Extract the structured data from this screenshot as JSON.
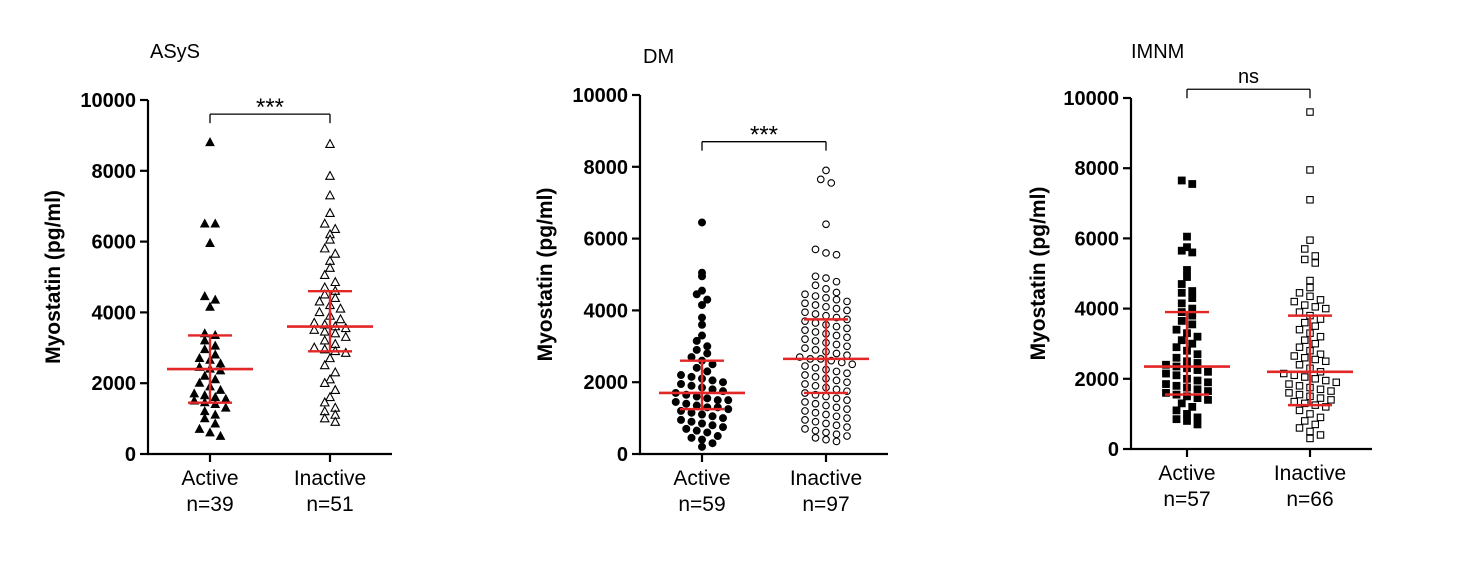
{
  "colors": {
    "point": "#000000",
    "summary": "#e32626",
    "axis": "#000000"
  },
  "chart_data": [
    {
      "type": "scatter",
      "title": "ASyS",
      "ylabel": "Myostatin (pg/ml)",
      "ylim": [
        0,
        10000
      ],
      "yticks": [
        "0",
        "2000",
        "4000",
        "6000",
        "8000",
        "10000"
      ],
      "categories": [
        {
          "name": "Active",
          "n_label": "n=39"
        },
        {
          "name": "Inactive",
          "n_label": "n=51"
        }
      ],
      "significance": {
        "label": "***",
        "y": 9600
      },
      "series": [
        {
          "name": "Active",
          "marker": "triangle-filled",
          "median": 2400,
          "q1": 1450,
          "q3": 3350,
          "values": [
            8800,
            6500,
            6500,
            5950,
            4450,
            4350,
            4150,
            3400,
            3350,
            3200,
            3050,
            2950,
            2800,
            2700,
            2650,
            2550,
            2450,
            2400,
            2350,
            2200,
            2100,
            2000,
            1900,
            1800,
            1700,
            1650,
            1600,
            1550,
            1500,
            1450,
            1400,
            1300,
            1200,
            1100,
            1000,
            850,
            700,
            600,
            500
          ]
        },
        {
          "name": "Inactive",
          "marker": "triangle-open",
          "median": 3600,
          "q1": 2900,
          "q3": 4600,
          "values": [
            8750,
            7850,
            7300,
            6800,
            6500,
            6350,
            6200,
            6050,
            5800,
            5650,
            5450,
            5250,
            5050,
            4850,
            4700,
            4600,
            4500,
            4400,
            4300,
            4200,
            4100,
            4000,
            3900,
            3800,
            3700,
            3650,
            3600,
            3550,
            3500,
            3450,
            3400,
            3300,
            3200,
            3100,
            3000,
            2950,
            2900,
            2850,
            2700,
            2500,
            2300,
            2100,
            2000,
            1800,
            1600,
            1450,
            1300,
            1200,
            1100,
            1000,
            900
          ]
        }
      ]
    },
    {
      "type": "scatter",
      "title": "DM",
      "ylabel": "Myostatin (pg/ml)",
      "ylim": [
        0,
        10000
      ],
      "yticks": [
        "0",
        "2000",
        "4000",
        "6000",
        "8000",
        "10000"
      ],
      "categories": [
        {
          "name": "Active",
          "n_label": "n=59"
        },
        {
          "name": "Inactive",
          "n_label": "n=97"
        }
      ],
      "significance": {
        "label": "***",
        "y": 8700
      },
      "series": [
        {
          "name": "Active",
          "marker": "circle-filled",
          "median": 1700,
          "q1": 1250,
          "q3": 2600,
          "values": [
            6450,
            5050,
            4950,
            4550,
            4450,
            4300,
            4150,
            3800,
            3600,
            3300,
            3150,
            3000,
            2900,
            2800,
            2700,
            2600,
            2500,
            2400,
            2300,
            2200,
            2150,
            2100,
            2050,
            2000,
            1950,
            1900,
            1850,
            1800,
            1750,
            1700,
            1650,
            1600,
            1550,
            1500,
            1500,
            1450,
            1400,
            1350,
            1300,
            1300,
            1250,
            1200,
            1150,
            1100,
            1050,
            1000,
            950,
            900,
            850,
            800,
            750,
            700,
            650,
            600,
            500,
            450,
            400,
            300,
            200
          ]
        },
        {
          "name": "Inactive",
          "marker": "circle-open",
          "median": 2650,
          "q1": 1700,
          "q3": 3750,
          "values": [
            7900,
            7650,
            7550,
            6400,
            5700,
            5600,
            5550,
            4950,
            4900,
            4800,
            4700,
            4600,
            4500,
            4450,
            4400,
            4350,
            4300,
            4250,
            4200,
            4150,
            4100,
            4050,
            4000,
            3950,
            3900,
            3850,
            3800,
            3750,
            3700,
            3650,
            3600,
            3550,
            3500,
            3450,
            3400,
            3350,
            3300,
            3250,
            3200,
            3150,
            3100,
            3050,
            3000,
            2950,
            2900,
            2850,
            2800,
            2750,
            2700,
            2650,
            2650,
            2600,
            2550,
            2500,
            2450,
            2400,
            2350,
            2300,
            2250,
            2200,
            2150,
            2100,
            2050,
            2000,
            1950,
            1900,
            1850,
            1800,
            1750,
            1700,
            1650,
            1600,
            1550,
            1500,
            1450,
            1400,
            1350,
            1300,
            1250,
            1200,
            1150,
            1100,
            1050,
            1000,
            950,
            900,
            850,
            800,
            750,
            700,
            650,
            600,
            550,
            500,
            450,
            400,
            350
          ]
        }
      ]
    },
    {
      "type": "scatter",
      "title": "IMNM",
      "ylabel": "Myostatin (pg/ml)",
      "ylim": [
        0,
        10000
      ],
      "yticks": [
        "0",
        "2000",
        "4000",
        "6000",
        "8000",
        "10000"
      ],
      "categories": [
        {
          "name": "Active",
          "n_label": "n=57"
        },
        {
          "name": "Inactive",
          "n_label": "n=66"
        }
      ],
      "significance": {
        "label": "ns",
        "y": 10250
      },
      "series": [
        {
          "name": "Active",
          "marker": "square-filled",
          "median": 2350,
          "q1": 1550,
          "q3": 3900,
          "values": [
            7650,
            7550,
            6050,
            5750,
            5650,
            5600,
            5100,
            4900,
            4700,
            4500,
            4450,
            4300,
            4150,
            4000,
            3900,
            3800,
            3650,
            3550,
            3400,
            3300,
            3200,
            3100,
            3000,
            2900,
            2800,
            2700,
            2600,
            2500,
            2450,
            2400,
            2350,
            2300,
            2250,
            2200,
            2150,
            2100,
            2000,
            1950,
            1900,
            1850,
            1800,
            1750,
            1700,
            1650,
            1600,
            1550,
            1500,
            1450,
            1400,
            1300,
            1200,
            1100,
            1000,
            900,
            850,
            800,
            700
          ]
        },
        {
          "name": "Inactive",
          "marker": "square-open",
          "median": 2200,
          "q1": 1250,
          "q3": 3800,
          "values": [
            9600,
            7950,
            7100,
            5950,
            5700,
            5500,
            5400,
            5300,
            4800,
            4600,
            4450,
            4350,
            4250,
            4200,
            4100,
            4050,
            4000,
            3900,
            3800,
            3700,
            3600,
            3500,
            3400,
            3300,
            3200,
            3100,
            3000,
            2900,
            2800,
            2700,
            2650,
            2600,
            2550,
            2500,
            2400,
            2300,
            2200,
            2150,
            2100,
            2050,
            2000,
            1950,
            1900,
            1850,
            1800,
            1750,
            1700,
            1650,
            1600,
            1550,
            1500,
            1450,
            1400,
            1350,
            1300,
            1250,
            1200,
            1100,
            1000,
            900,
            800,
            700,
            600,
            500,
            400,
            300
          ]
        }
      ]
    }
  ]
}
